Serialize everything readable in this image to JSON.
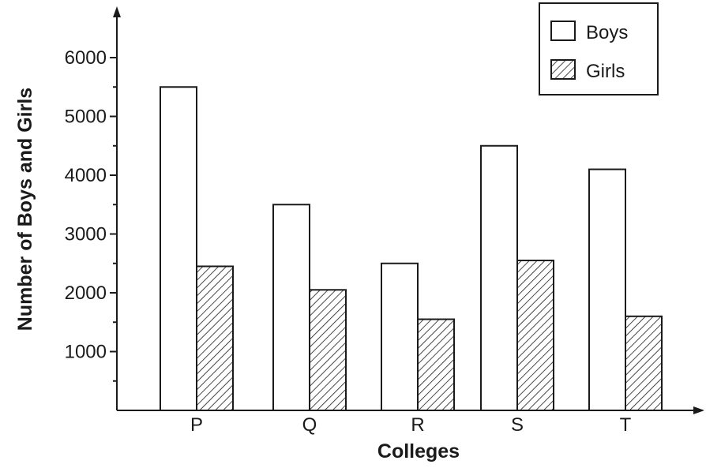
{
  "chart_data": {
    "type": "bar",
    "title": "",
    "xlabel": "Colleges",
    "ylabel": "Number of Boys and Girls",
    "categories": [
      "P",
      "Q",
      "R",
      "S",
      "T"
    ],
    "series": [
      {
        "name": "Boys",
        "values": [
          5500,
          3500,
          2500,
          4500,
          4100
        ],
        "pattern": "plain"
      },
      {
        "name": "Girls",
        "values": [
          2450,
          2050,
          1550,
          2550,
          1600
        ],
        "pattern": "hatched"
      }
    ],
    "ylim": [
      0,
      6000
    ],
    "yticks": [
      1000,
      2000,
      3000,
      4000,
      5000,
      6000
    ],
    "grid": false,
    "legend_position": "top-right",
    "colors": {
      "ink": "#1a1a1a",
      "background": "#ffffff"
    }
  }
}
